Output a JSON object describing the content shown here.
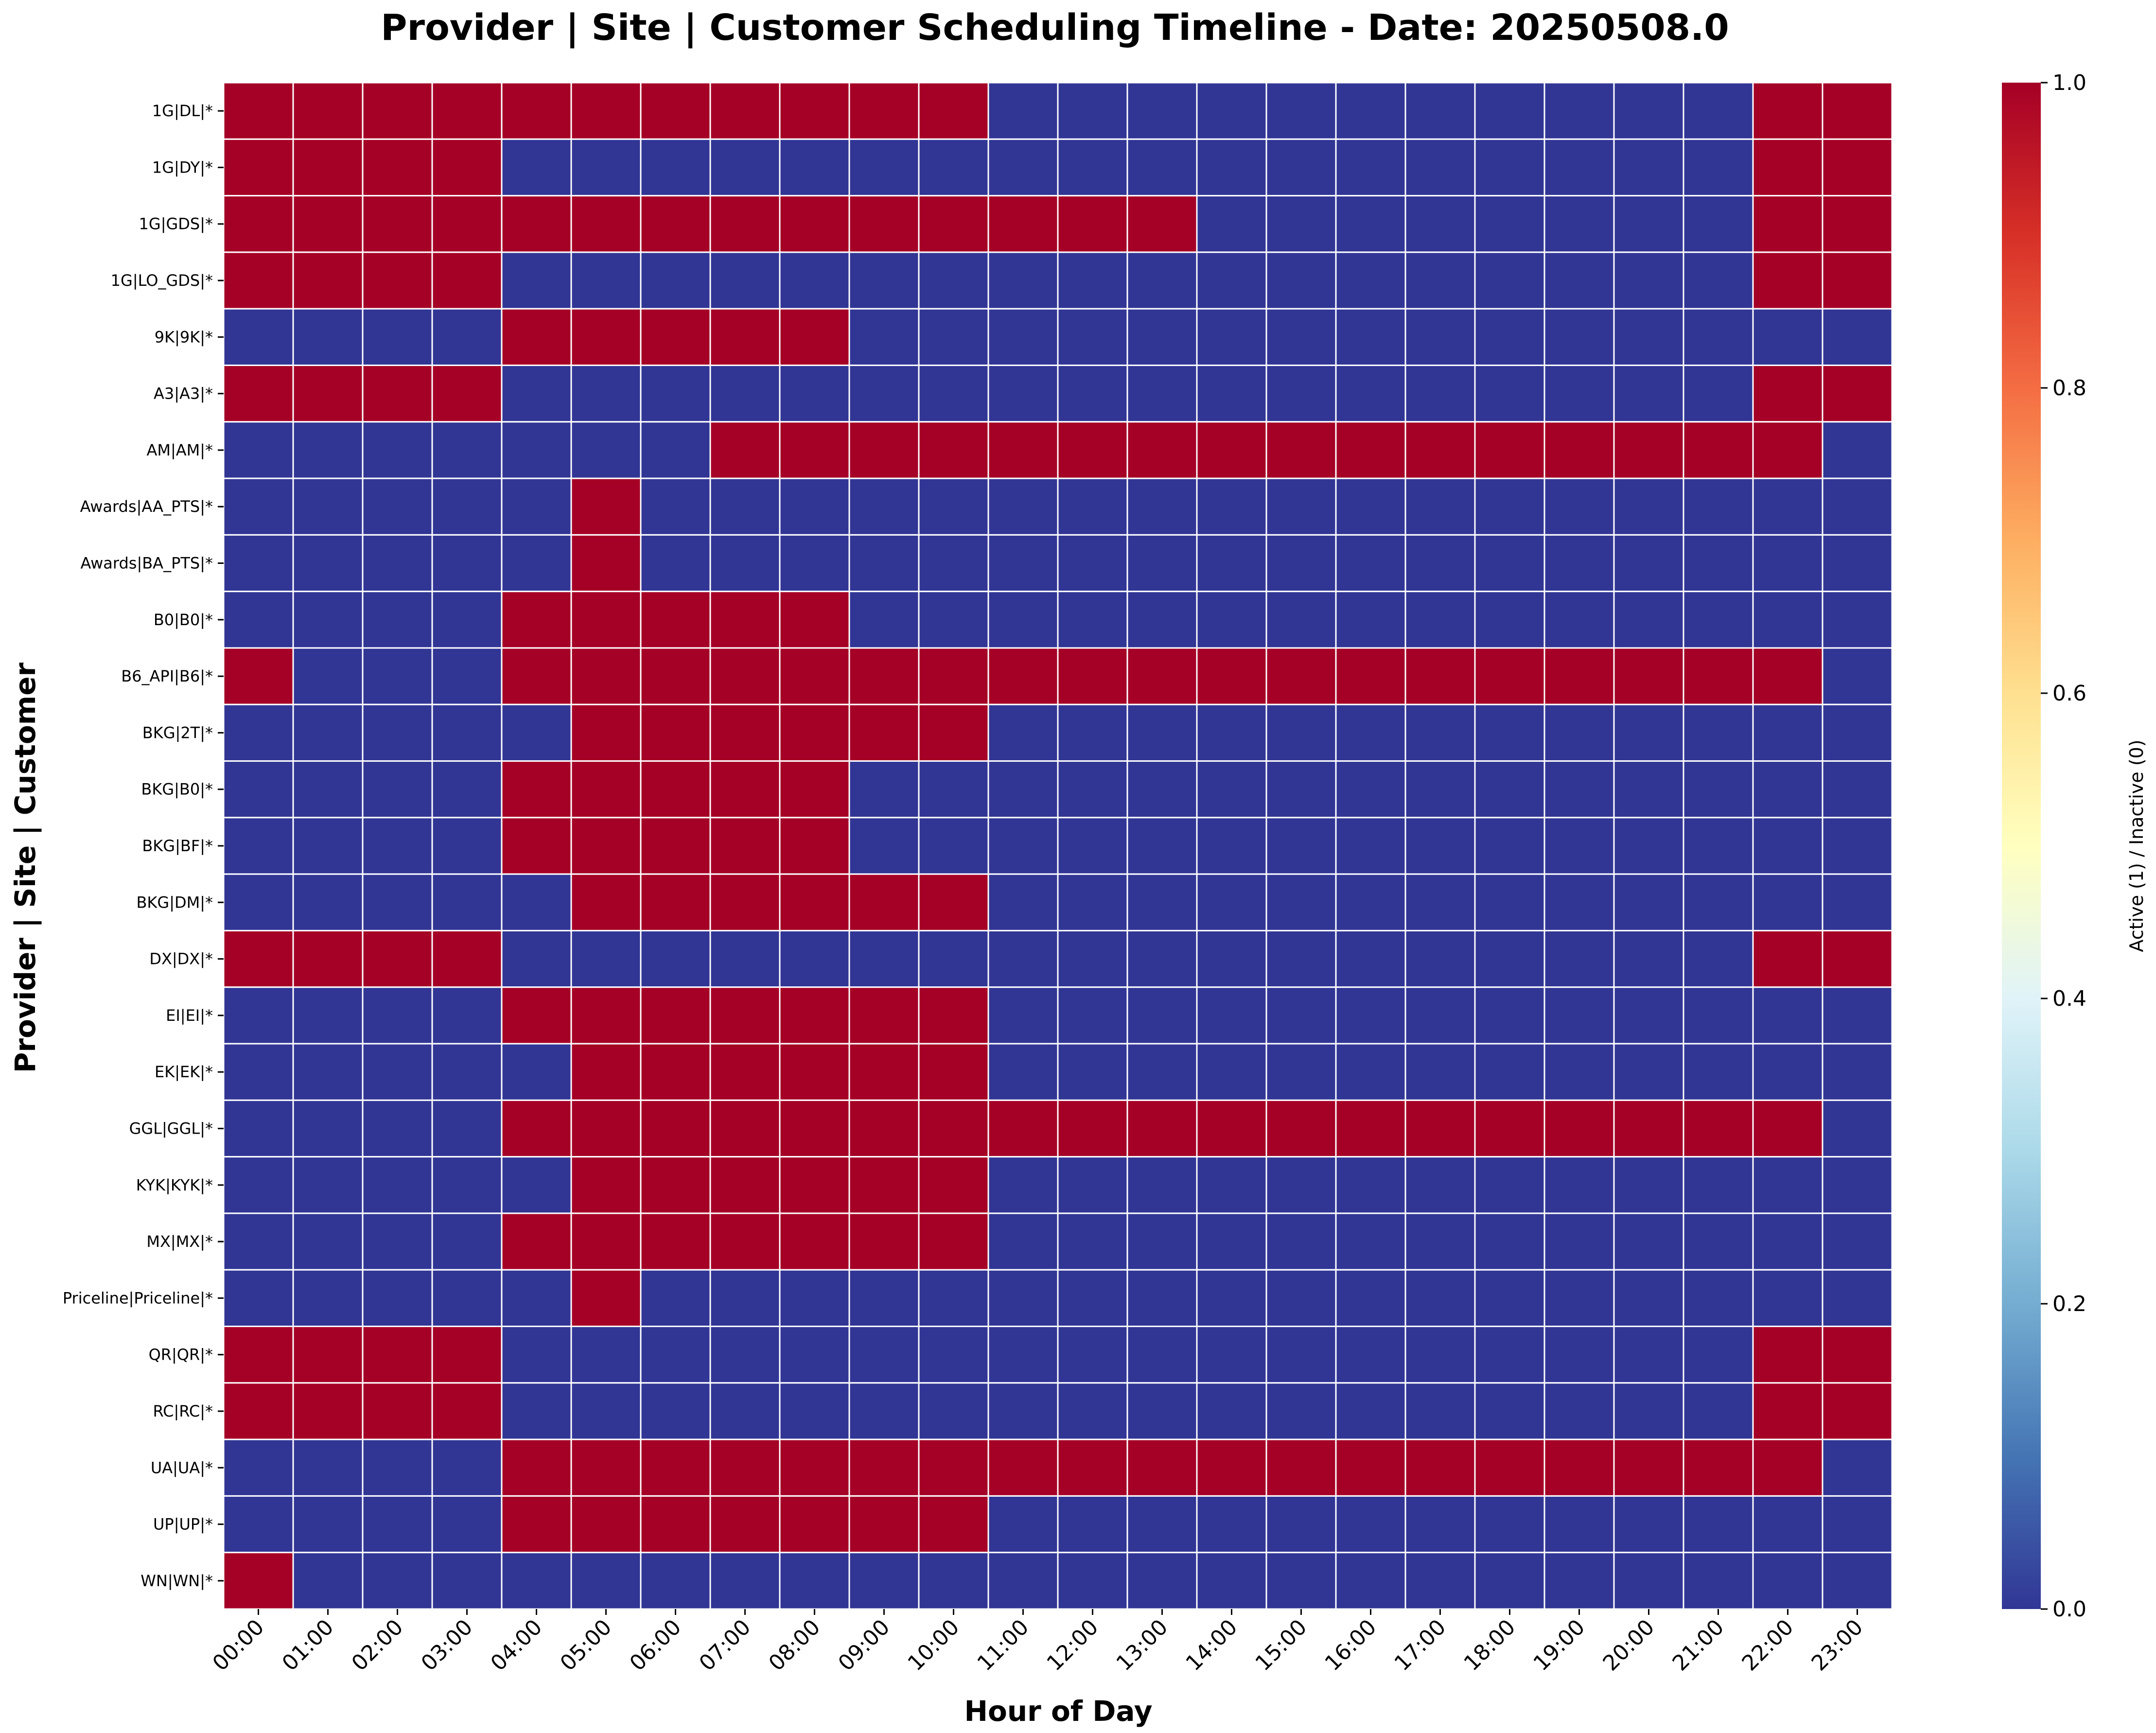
{
  "chart_data": {
    "type": "heatmap",
    "title": "Provider | Site | Customer Scheduling Timeline - Date: 20250508.0",
    "xlabel": "Hour of Day",
    "ylabel": "Provider | Site | Customer",
    "colorbar_label": "Active (1) / Inactive (0)",
    "colormap": "RdYlBu_r",
    "vmin": 0.0,
    "vmax": 1.0,
    "colorbar_ticks": [
      "0.0",
      "0.2",
      "0.4",
      "0.6",
      "0.8",
      "1.0"
    ],
    "colors": {
      "active": "#a50026",
      "inactive": "#313695",
      "gridline": "#ffffff"
    },
    "x": [
      "00:00",
      "01:00",
      "02:00",
      "03:00",
      "04:00",
      "05:00",
      "06:00",
      "07:00",
      "08:00",
      "09:00",
      "10:00",
      "11:00",
      "12:00",
      "13:00",
      "14:00",
      "15:00",
      "16:00",
      "17:00",
      "18:00",
      "19:00",
      "20:00",
      "21:00",
      "22:00",
      "23:00"
    ],
    "y": [
      "1G|DL|*",
      "1G|DY|*",
      "1G|GDS|*",
      "1G|LO_GDS|*",
      "9K|9K|*",
      "A3|A3|*",
      "AM|AM|*",
      "Awards|AA_PTS|*",
      "Awards|BA_PTS|*",
      "B0|B0|*",
      "B6_API|B6|*",
      "BKG|2T|*",
      "BKG|B0|*",
      "BKG|BF|*",
      "BKG|DM|*",
      "DX|DX|*",
      "EI|EI|*",
      "EK|EK|*",
      "GGL|GGL|*",
      "KYK|KYK|*",
      "MX|MX|*",
      "Priceline|Priceline|*",
      "QR|QR|*",
      "RC|RC|*",
      "UA|UA|*",
      "UP|UP|*",
      "WN|WN|*"
    ],
    "values": [
      [
        1,
        1,
        1,
        1,
        1,
        1,
        1,
        1,
        1,
        1,
        1,
        0,
        0,
        0,
        0,
        0,
        0,
        0,
        0,
        0,
        0,
        0,
        1,
        1
      ],
      [
        1,
        1,
        1,
        1,
        0,
        0,
        0,
        0,
        0,
        0,
        0,
        0,
        0,
        0,
        0,
        0,
        0,
        0,
        0,
        0,
        0,
        0,
        1,
        1
      ],
      [
        1,
        1,
        1,
        1,
        1,
        1,
        1,
        1,
        1,
        1,
        1,
        1,
        1,
        1,
        0,
        0,
        0,
        0,
        0,
        0,
        0,
        0,
        1,
        1
      ],
      [
        1,
        1,
        1,
        1,
        0,
        0,
        0,
        0,
        0,
        0,
        0,
        0,
        0,
        0,
        0,
        0,
        0,
        0,
        0,
        0,
        0,
        0,
        1,
        1
      ],
      [
        0,
        0,
        0,
        0,
        1,
        1,
        1,
        1,
        1,
        0,
        0,
        0,
        0,
        0,
        0,
        0,
        0,
        0,
        0,
        0,
        0,
        0,
        0,
        0
      ],
      [
        1,
        1,
        1,
        1,
        0,
        0,
        0,
        0,
        0,
        0,
        0,
        0,
        0,
        0,
        0,
        0,
        0,
        0,
        0,
        0,
        0,
        0,
        1,
        1
      ],
      [
        0,
        0,
        0,
        0,
        0,
        0,
        0,
        1,
        1,
        1,
        1,
        1,
        1,
        1,
        1,
        1,
        1,
        1,
        1,
        1,
        1,
        1,
        1,
        0
      ],
      [
        0,
        0,
        0,
        0,
        0,
        1,
        0,
        0,
        0,
        0,
        0,
        0,
        0,
        0,
        0,
        0,
        0,
        0,
        0,
        0,
        0,
        0,
        0,
        0
      ],
      [
        0,
        0,
        0,
        0,
        0,
        1,
        0,
        0,
        0,
        0,
        0,
        0,
        0,
        0,
        0,
        0,
        0,
        0,
        0,
        0,
        0,
        0,
        0,
        0
      ],
      [
        0,
        0,
        0,
        0,
        1,
        1,
        1,
        1,
        1,
        0,
        0,
        0,
        0,
        0,
        0,
        0,
        0,
        0,
        0,
        0,
        0,
        0,
        0,
        0
      ],
      [
        1,
        0,
        0,
        0,
        1,
        1,
        1,
        1,
        1,
        1,
        1,
        1,
        1,
        1,
        1,
        1,
        1,
        1,
        1,
        1,
        1,
        1,
        1,
        0
      ],
      [
        0,
        0,
        0,
        0,
        0,
        1,
        1,
        1,
        1,
        1,
        1,
        0,
        0,
        0,
        0,
        0,
        0,
        0,
        0,
        0,
        0,
        0,
        0,
        0
      ],
      [
        0,
        0,
        0,
        0,
        1,
        1,
        1,
        1,
        1,
        0,
        0,
        0,
        0,
        0,
        0,
        0,
        0,
        0,
        0,
        0,
        0,
        0,
        0,
        0
      ],
      [
        0,
        0,
        0,
        0,
        1,
        1,
        1,
        1,
        1,
        0,
        0,
        0,
        0,
        0,
        0,
        0,
        0,
        0,
        0,
        0,
        0,
        0,
        0,
        0
      ],
      [
        0,
        0,
        0,
        0,
        0,
        1,
        1,
        1,
        1,
        1,
        1,
        0,
        0,
        0,
        0,
        0,
        0,
        0,
        0,
        0,
        0,
        0,
        0,
        0
      ],
      [
        1,
        1,
        1,
        1,
        0,
        0,
        0,
        0,
        0,
        0,
        0,
        0,
        0,
        0,
        0,
        0,
        0,
        0,
        0,
        0,
        0,
        0,
        1,
        1
      ],
      [
        0,
        0,
        0,
        0,
        1,
        1,
        1,
        1,
        1,
        1,
        1,
        0,
        0,
        0,
        0,
        0,
        0,
        0,
        0,
        0,
        0,
        0,
        0,
        0
      ],
      [
        0,
        0,
        0,
        0,
        0,
        1,
        1,
        1,
        1,
        1,
        1,
        0,
        0,
        0,
        0,
        0,
        0,
        0,
        0,
        0,
        0,
        0,
        0,
        0
      ],
      [
        0,
        0,
        0,
        0,
        1,
        1,
        1,
        1,
        1,
        1,
        1,
        1,
        1,
        1,
        1,
        1,
        1,
        1,
        1,
        1,
        1,
        1,
        1,
        0
      ],
      [
        0,
        0,
        0,
        0,
        0,
        1,
        1,
        1,
        1,
        1,
        1,
        0,
        0,
        0,
        0,
        0,
        0,
        0,
        0,
        0,
        0,
        0,
        0,
        0
      ],
      [
        0,
        0,
        0,
        0,
        1,
        1,
        1,
        1,
        1,
        1,
        1,
        0,
        0,
        0,
        0,
        0,
        0,
        0,
        0,
        0,
        0,
        0,
        0,
        0
      ],
      [
        0,
        0,
        0,
        0,
        0,
        1,
        0,
        0,
        0,
        0,
        0,
        0,
        0,
        0,
        0,
        0,
        0,
        0,
        0,
        0,
        0,
        0,
        0,
        0
      ],
      [
        1,
        1,
        1,
        1,
        0,
        0,
        0,
        0,
        0,
        0,
        0,
        0,
        0,
        0,
        0,
        0,
        0,
        0,
        0,
        0,
        0,
        0,
        1,
        1
      ],
      [
        1,
        1,
        1,
        1,
        0,
        0,
        0,
        0,
        0,
        0,
        0,
        0,
        0,
        0,
        0,
        0,
        0,
        0,
        0,
        0,
        0,
        0,
        1,
        1
      ],
      [
        0,
        0,
        0,
        0,
        1,
        1,
        1,
        1,
        1,
        1,
        1,
        1,
        1,
        1,
        1,
        1,
        1,
        1,
        1,
        1,
        1,
        1,
        1,
        0
      ],
      [
        0,
        0,
        0,
        0,
        1,
        1,
        1,
        1,
        1,
        1,
        1,
        0,
        0,
        0,
        0,
        0,
        0,
        0,
        0,
        0,
        0,
        0,
        0,
        0
      ],
      [
        1,
        0,
        0,
        0,
        0,
        0,
        0,
        0,
        0,
        0,
        0,
        0,
        0,
        0,
        0,
        0,
        0,
        0,
        0,
        0,
        0,
        0,
        0,
        0
      ]
    ]
  }
}
